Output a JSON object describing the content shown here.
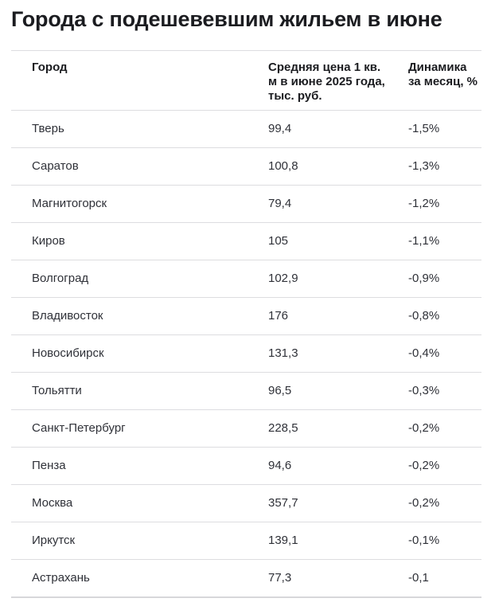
{
  "chart_data": {
    "type": "table",
    "title": "Города с подешевевшим жильем в июне",
    "columns": [
      "Город",
      "Средняя цена 1 кв. м в июне 2025 года, тыс. руб.",
      "Динамика за месяц, %"
    ],
    "rows": [
      {
        "city": "Тверь",
        "price": "99,4",
        "change": "-1,5%"
      },
      {
        "city": "Саратов",
        "price": "100,8",
        "change": "-1,3%"
      },
      {
        "city": "Магнитогорск",
        "price": "79,4",
        "change": "-1,2%"
      },
      {
        "city": "Киров",
        "price": "105",
        "change": "-1,1%"
      },
      {
        "city": "Волгоград",
        "price": "102,9",
        "change": "-0,9%"
      },
      {
        "city": "Владивосток",
        "price": "176",
        "change": "-0,8%"
      },
      {
        "city": "Новосибирск",
        "price": "131,3",
        "change": "-0,4%"
      },
      {
        "city": "Тольятти",
        "price": "96,5",
        "change": "-0,3%"
      },
      {
        "city": "Санкт-Петербург",
        "price": "228,5",
        "change": "-0,2%"
      },
      {
        "city": "Пенза",
        "price": "94,6",
        "change": "-0,2%"
      },
      {
        "city": "Москва",
        "price": "357,7",
        "change": "-0,2%"
      },
      {
        "city": "Иркутск",
        "price": "139,1",
        "change": "-0,1%"
      },
      {
        "city": "Астрахань",
        "price": "77,3",
        "change": "-0,1"
      }
    ]
  },
  "colors": {
    "text_heading": "#1b1c20",
    "text_body": "#2f3138",
    "divider": "#dddde0",
    "divider_strong": "#d7d7da",
    "background": "#ffffff"
  }
}
